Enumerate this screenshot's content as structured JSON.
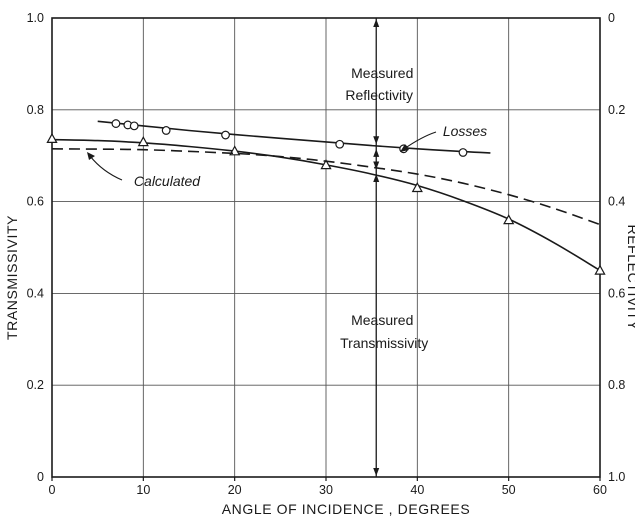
{
  "chart_data": {
    "type": "line",
    "x_axis": {
      "label": "ANGLE OF INCIDENCE , DEGREES",
      "range": [
        0,
        60
      ],
      "ticks": [
        0,
        10,
        20,
        30,
        40,
        50,
        60
      ],
      "tick_labels": [
        "0",
        "10",
        "20",
        "30",
        "40",
        "50",
        "60"
      ]
    },
    "y_axis_left": {
      "label": "TRANSMISSIVITY",
      "range": [
        0,
        1.0
      ],
      "ticks": [
        0,
        0.2,
        0.4,
        0.6,
        0.8,
        1.0
      ],
      "tick_labels": [
        "0",
        "0.2",
        "0.4",
        "0.6",
        "0.8",
        "1.0"
      ]
    },
    "y_axis_right": {
      "label": "REFLECTIVITY",
      "range": [
        0,
        1.0
      ],
      "reversed": true,
      "ticks": [
        0,
        0.2,
        0.4,
        0.6,
        0.8,
        1.0
      ],
      "tick_labels": [
        "0",
        "0.2",
        "0.4",
        "0.6",
        "0.8",
        "1.0"
      ]
    },
    "grid": true,
    "series": [
      {
        "style": "solid",
        "marker": "circle",
        "x": [
          7,
          8.3,
          9,
          12.5,
          19,
          31.5,
          38.5,
          45
        ],
        "y": [
          0.77,
          0.767,
          0.765,
          0.755,
          0.745,
          0.725,
          0.715,
          0.707
        ],
        "curve_x": [
          5,
          10,
          15,
          20,
          25,
          30,
          35,
          40,
          45,
          48
        ],
        "curve_y": [
          0.775,
          0.765,
          0.755,
          0.746,
          0.738,
          0.73,
          0.722,
          0.715,
          0.709,
          0.706
        ]
      },
      {
        "style": "solid",
        "marker": "triangle",
        "x": [
          0,
          10,
          20,
          30,
          40,
          50,
          60
        ],
        "y": [
          0.737,
          0.73,
          0.71,
          0.68,
          0.63,
          0.56,
          0.45
        ],
        "curve_x": [
          0,
          5,
          10,
          15,
          20,
          25,
          30,
          35,
          40,
          45,
          50,
          55,
          60
        ],
        "curve_y": [
          0.735,
          0.733,
          0.728,
          0.72,
          0.71,
          0.697,
          0.68,
          0.66,
          0.635,
          0.602,
          0.562,
          0.51,
          0.45
        ]
      },
      {
        "name": "Calculated",
        "style": "dashed",
        "marker": "none",
        "curve_x": [
          0,
          10,
          20,
          25,
          30,
          35,
          40,
          45,
          50,
          55,
          60
        ],
        "curve_y": [
          0.715,
          0.713,
          0.705,
          0.698,
          0.688,
          0.675,
          0.66,
          0.64,
          0.615,
          0.585,
          0.55
        ]
      }
    ],
    "reference_line": {
      "x": 35.5
    },
    "annotations": {
      "reflectivity": [
        "Measured",
        "Reflectivity"
      ],
      "losses": "Losses",
      "calculated": "Calculated",
      "transmissivity": [
        "Measured",
        "Transmissivity"
      ]
    }
  }
}
